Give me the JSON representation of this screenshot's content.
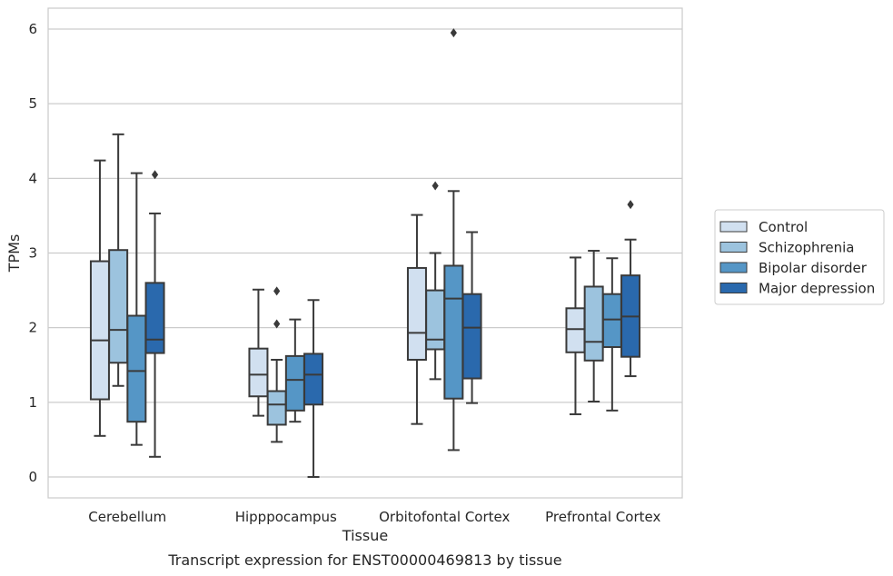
{
  "chart_data": {
    "type": "box",
    "title": "",
    "caption": "Transcript expression for ENST00000469813 by tissue",
    "xlabel": "Tissue",
    "ylabel": "TPMs",
    "ylim": [
      -0.28,
      6.28
    ],
    "yticks": [
      0,
      1,
      2,
      3,
      4,
      5,
      6
    ],
    "grid": "horizontal",
    "legend_position": "right",
    "categories": [
      "Cerebellum",
      "Hipppocampus",
      "Orbitofontal Cortex",
      "Prefrontal Cortex"
    ],
    "series": [
      {
        "name": "Control",
        "color": "#d1e0f0",
        "boxes": [
          {
            "whislo": 0.55,
            "q1": 1.04,
            "med": 1.83,
            "q3": 2.89,
            "whishi": 4.24,
            "fliers": []
          },
          {
            "whislo": 0.82,
            "q1": 1.08,
            "med": 1.37,
            "q3": 1.72,
            "whishi": 2.51,
            "fliers": []
          },
          {
            "whislo": 0.71,
            "q1": 1.57,
            "med": 1.93,
            "q3": 2.8,
            "whishi": 3.51,
            "fliers": []
          },
          {
            "whislo": 0.84,
            "q1": 1.67,
            "med": 1.98,
            "q3": 2.26,
            "whishi": 2.94,
            "fliers": []
          }
        ]
      },
      {
        "name": "Schizophrenia",
        "color": "#9cc3de",
        "boxes": [
          {
            "whislo": 1.22,
            "q1": 1.53,
            "med": 1.97,
            "q3": 3.04,
            "whishi": 4.59,
            "fliers": []
          },
          {
            "whislo": 0.47,
            "q1": 0.7,
            "med": 0.97,
            "q3": 1.15,
            "whishi": 1.57,
            "fliers": [
              2.05,
              2.49
            ]
          },
          {
            "whislo": 1.31,
            "q1": 1.71,
            "med": 1.84,
            "q3": 2.5,
            "whishi": 3.0,
            "fliers": [
              3.9
            ]
          },
          {
            "whislo": 1.01,
            "q1": 1.56,
            "med": 1.81,
            "q3": 2.55,
            "whishi": 3.03,
            "fliers": []
          }
        ]
      },
      {
        "name": "Bipolar disorder",
        "color": "#5596c6",
        "boxes": [
          {
            "whislo": 0.43,
            "q1": 0.74,
            "med": 1.42,
            "q3": 2.16,
            "whishi": 4.07,
            "fliers": []
          },
          {
            "whislo": 0.74,
            "q1": 0.89,
            "med": 1.3,
            "q3": 1.62,
            "whishi": 2.11,
            "fliers": []
          },
          {
            "whislo": 0.36,
            "q1": 1.05,
            "med": 2.39,
            "q3": 2.83,
            "whishi": 3.83,
            "fliers": [
              5.95
            ]
          },
          {
            "whislo": 0.89,
            "q1": 1.74,
            "med": 2.11,
            "q3": 2.45,
            "whishi": 2.93,
            "fliers": []
          }
        ]
      },
      {
        "name": "Major depression",
        "color": "#2a69ad",
        "boxes": [
          {
            "whislo": 0.27,
            "q1": 1.66,
            "med": 1.84,
            "q3": 2.6,
            "whishi": 3.53,
            "fliers": [
              4.05
            ]
          },
          {
            "whislo": 0.0,
            "q1": 0.97,
            "med": 1.37,
            "q3": 1.65,
            "whishi": 2.37,
            "fliers": []
          },
          {
            "whislo": 0.99,
            "q1": 1.32,
            "med": 2.0,
            "q3": 2.45,
            "whishi": 3.28,
            "fliers": []
          },
          {
            "whislo": 1.35,
            "q1": 1.61,
            "med": 2.15,
            "q3": 2.7,
            "whishi": 3.18,
            "fliers": [
              3.65
            ]
          }
        ]
      }
    ]
  }
}
